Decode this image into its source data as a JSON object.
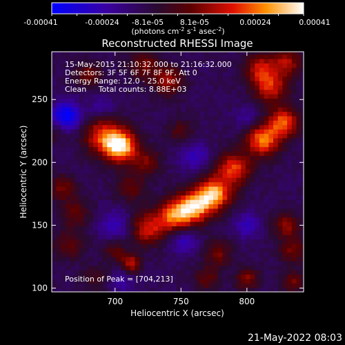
{
  "chart_data": {
    "type": "heatmap",
    "title": "Reconstructed RHESSI Image",
    "xlabel": "Heliocentric X (arcsec)",
    "ylabel": "Heliocentric Y (arcsec)",
    "xlim": [
      652,
      843
    ],
    "ylim": [
      97,
      288
    ],
    "xticks": [
      700,
      750,
      800
    ],
    "yticks": [
      100,
      150,
      200,
      250
    ],
    "annotations": [
      "15-May-2015 21:10:32.000 to 21:16:32.000",
      "Detectors: 3F 5F 6F 7F 8F 9F, Att 0",
      "Energy Range: 12.0 - 25.0 keV",
      "Clean     Total counts: 8.88E+03"
    ],
    "peak_label": "Position of Peak = [704,213]",
    "peak": [
      704,
      213
    ],
    "colorbar": {
      "ticks": [
        "-0.00041",
        "-0.00024",
        "-8.1e-05",
        "8.1e-05",
        "0.00024",
        "0.00041"
      ],
      "range": [
        -0.00041,
        0.00041
      ],
      "unit_text": "(photons cm",
      "unit_exp1": "-2",
      "unit_mid": " s",
      "unit_exp2": "-1",
      "unit_end": " asec",
      "unit_exp3": "-2",
      "unit_close": ")"
    },
    "colors": [
      "#0000ff",
      "#3a0080",
      "#3a0d4c",
      "#8a0000",
      "#ff3300",
      "#ffd000",
      "#ffffff"
    ],
    "sources": [
      {
        "x": 704,
        "y": 213,
        "strength": 1.0,
        "width": 9
      },
      {
        "x": 690,
        "y": 222,
        "strength": 0.55,
        "width": 10
      },
      {
        "x": 775,
        "y": 175,
        "strength": 0.85,
        "width": 9
      },
      {
        "x": 760,
        "y": 165,
        "strength": 0.8,
        "width": 9
      },
      {
        "x": 745,
        "y": 158,
        "strength": 0.7,
        "width": 9
      },
      {
        "x": 725,
        "y": 148,
        "strength": 0.55,
        "width": 9
      },
      {
        "x": 790,
        "y": 195,
        "strength": 0.65,
        "width": 9
      },
      {
        "x": 812,
        "y": 218,
        "strength": 0.75,
        "width": 9
      },
      {
        "x": 828,
        "y": 232,
        "strength": 0.7,
        "width": 8
      },
      {
        "x": 818,
        "y": 260,
        "strength": 0.55,
        "width": 9
      },
      {
        "x": 810,
        "y": 275,
        "strength": 0.5,
        "width": 8
      },
      {
        "x": 830,
        "y": 280,
        "strength": 0.45,
        "width": 8
      },
      {
        "x": 740,
        "y": 265,
        "strength": 0.45,
        "width": 8
      },
      {
        "x": 722,
        "y": 278,
        "strength": 0.35,
        "width": 8
      },
      {
        "x": 680,
        "y": 270,
        "strength": 0.35,
        "width": 7
      },
      {
        "x": 712,
        "y": 180,
        "strength": 0.3,
        "width": 8
      },
      {
        "x": 725,
        "y": 200,
        "strength": 0.35,
        "width": 7
      },
      {
        "x": 660,
        "y": 180,
        "strength": 0.35,
        "width": 7
      },
      {
        "x": 670,
        "y": 160,
        "strength": 0.3,
        "width": 8
      },
      {
        "x": 665,
        "y": 135,
        "strength": 0.3,
        "width": 8
      },
      {
        "x": 700,
        "y": 130,
        "strength": 0.3,
        "width": 6
      },
      {
        "x": 712,
        "y": 120,
        "strength": 0.55,
        "width": 5
      },
      {
        "x": 778,
        "y": 128,
        "strength": 0.35,
        "width": 7
      },
      {
        "x": 830,
        "y": 150,
        "strength": 0.4,
        "width": 7
      },
      {
        "x": 835,
        "y": 130,
        "strength": 0.35,
        "width": 7
      },
      {
        "x": 770,
        "y": 108,
        "strength": 0.3,
        "width": 7
      },
      {
        "x": 800,
        "y": 108,
        "strength": 0.4,
        "width": 6
      },
      {
        "x": 835,
        "y": 105,
        "strength": 0.35,
        "width": 6
      },
      {
        "x": 685,
        "y": 108,
        "strength": 0.2,
        "width": 7
      },
      {
        "x": 750,
        "y": 225,
        "strength": 0.25,
        "width": 7
      },
      {
        "x": 655,
        "y": 225,
        "strength": 0.2,
        "width": 6
      }
    ],
    "minima": [
      {
        "x": 663,
        "y": 237,
        "strength": 0.9,
        "width": 8
      },
      {
        "x": 752,
        "y": 138,
        "strength": 0.5,
        "width": 7
      },
      {
        "x": 800,
        "y": 150,
        "strength": 0.45,
        "width": 7
      },
      {
        "x": 760,
        "y": 205,
        "strength": 0.45,
        "width": 8
      },
      {
        "x": 700,
        "y": 150,
        "strength": 0.4,
        "width": 9
      },
      {
        "x": 800,
        "y": 235,
        "strength": 0.3,
        "width": 7
      },
      {
        "x": 690,
        "y": 245,
        "strength": 0.3,
        "width": 7
      },
      {
        "x": 705,
        "y": 105,
        "strength": 0.3,
        "width": 7
      }
    ]
  },
  "footer": {
    "timestamp": "21-May-2022 08:03"
  }
}
